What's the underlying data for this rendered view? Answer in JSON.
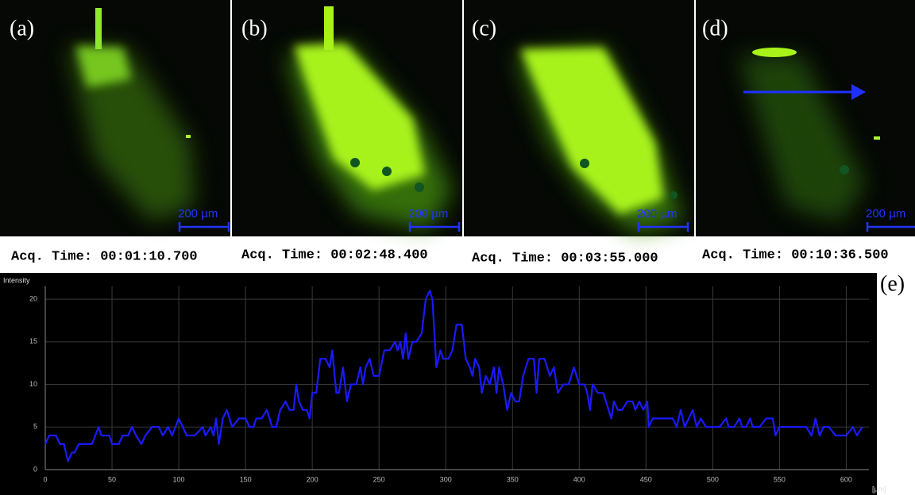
{
  "panels": [
    {
      "label": "(a)",
      "time": "Acq. Time: 00:01:10.700",
      "scale": "200 µm"
    },
    {
      "label": "(b)",
      "time": "Acq. Time: 00:02:48.400",
      "scale": "200 µm"
    },
    {
      "label": "(c)",
      "time": "Acq. Time: 00:03:55.000",
      "scale": "200 µm"
    },
    {
      "label": "(d)",
      "time": "Acq. Time: 00:10:36.500",
      "scale": "200 µm"
    }
  ],
  "panel_e_label": "(e)",
  "chart_data": {
    "type": "line",
    "y_label": "Intensity",
    "x_label": "[µm]",
    "x": [
      0,
      3,
      8,
      11,
      14,
      17,
      20,
      22,
      25,
      30,
      35,
      40,
      42,
      48,
      50,
      55,
      58,
      62,
      65,
      68,
      72,
      75,
      80,
      85,
      88,
      92,
      95,
      100,
      103,
      106,
      112,
      118,
      120,
      124,
      126,
      128,
      130,
      133,
      136,
      140,
      145,
      150,
      153,
      156,
      158,
      162,
      166,
      170,
      173,
      176,
      180,
      183,
      186,
      188,
      190,
      193,
      196,
      198,
      200,
      203,
      206,
      210,
      213,
      215,
      218,
      220,
      223,
      226,
      229,
      233,
      236,
      238,
      240,
      243,
      246,
      250,
      254,
      258,
      262,
      264,
      266,
      268,
      270,
      272,
      275,
      278,
      282,
      285,
      288,
      290,
      293,
      296,
      298,
      302,
      305,
      308,
      312,
      315,
      318,
      320,
      322,
      325,
      327,
      330,
      333,
      336,
      338,
      340,
      343,
      346,
      349,
      352,
      355,
      358,
      362,
      366,
      368,
      370,
      374,
      378,
      381,
      384,
      388,
      392,
      396,
      400,
      404,
      406,
      408,
      410,
      414,
      418,
      420,
      424,
      426,
      429,
      432,
      436,
      440,
      442,
      445,
      448,
      451,
      452,
      455,
      458,
      462,
      466,
      470,
      473,
      476,
      479,
      482,
      485,
      488,
      491,
      495,
      500,
      505,
      510,
      512,
      516,
      520,
      522,
      525,
      528,
      530,
      535,
      540,
      545,
      547,
      550,
      555,
      560,
      565,
      570,
      574,
      577,
      580,
      583,
      587,
      592,
      595,
      600,
      605,
      608,
      612
    ],
    "series": [
      {
        "color": "#1a1aff",
        "values": [
          3,
          4,
          4,
          3,
          3,
          1,
          2,
          2,
          3,
          3,
          3,
          5,
          4,
          4,
          3,
          3,
          4,
          4,
          5,
          4,
          3,
          4,
          5,
          5,
          4,
          5,
          4,
          6,
          5,
          4,
          4,
          5,
          4,
          5,
          4,
          6,
          3,
          6,
          7,
          5,
          6,
          6,
          5,
          5,
          6,
          6,
          7,
          5,
          5,
          7,
          8,
          7,
          7,
          10,
          8,
          7,
          7,
          6,
          9,
          9,
          13,
          13,
          12,
          14,
          9,
          9,
          12,
          8,
          10,
          10,
          12,
          10,
          12,
          13,
          11,
          11,
          14,
          14,
          15,
          14,
          15,
          13,
          16,
          13,
          15,
          15,
          16,
          20,
          21,
          20,
          12,
          14,
          13,
          13,
          14,
          17,
          17,
          13,
          12,
          11,
          13,
          12,
          9,
          11,
          10,
          12,
          9,
          12,
          10,
          7,
          9,
          8,
          8,
          11,
          13,
          13,
          9,
          13,
          13,
          11,
          12,
          9,
          10,
          10,
          12,
          10,
          10,
          9,
          7,
          10,
          9,
          9,
          8,
          6,
          8,
          7,
          7,
          8,
          8,
          7,
          8,
          7,
          8,
          5,
          6,
          6,
          6,
          6,
          6,
          5,
          7,
          5,
          6,
          7,
          5,
          6,
          5,
          5,
          5,
          6,
          5,
          5,
          6,
          5,
          5,
          6,
          5,
          5,
          6,
          6,
          4,
          5,
          5,
          5,
          5,
          5,
          4,
          6,
          4,
          5,
          5,
          4,
          4,
          4,
          5,
          4,
          5
        ]
      }
    ],
    "xlim": [
      0,
      617
    ],
    "ylim": [
      0,
      21.5
    ],
    "xticks": [
      0,
      50,
      100,
      150,
      200,
      250,
      300,
      350,
      400,
      450,
      500,
      550,
      600
    ],
    "yticks": [
      0,
      5,
      10,
      15,
      20
    ],
    "grid": true
  }
}
